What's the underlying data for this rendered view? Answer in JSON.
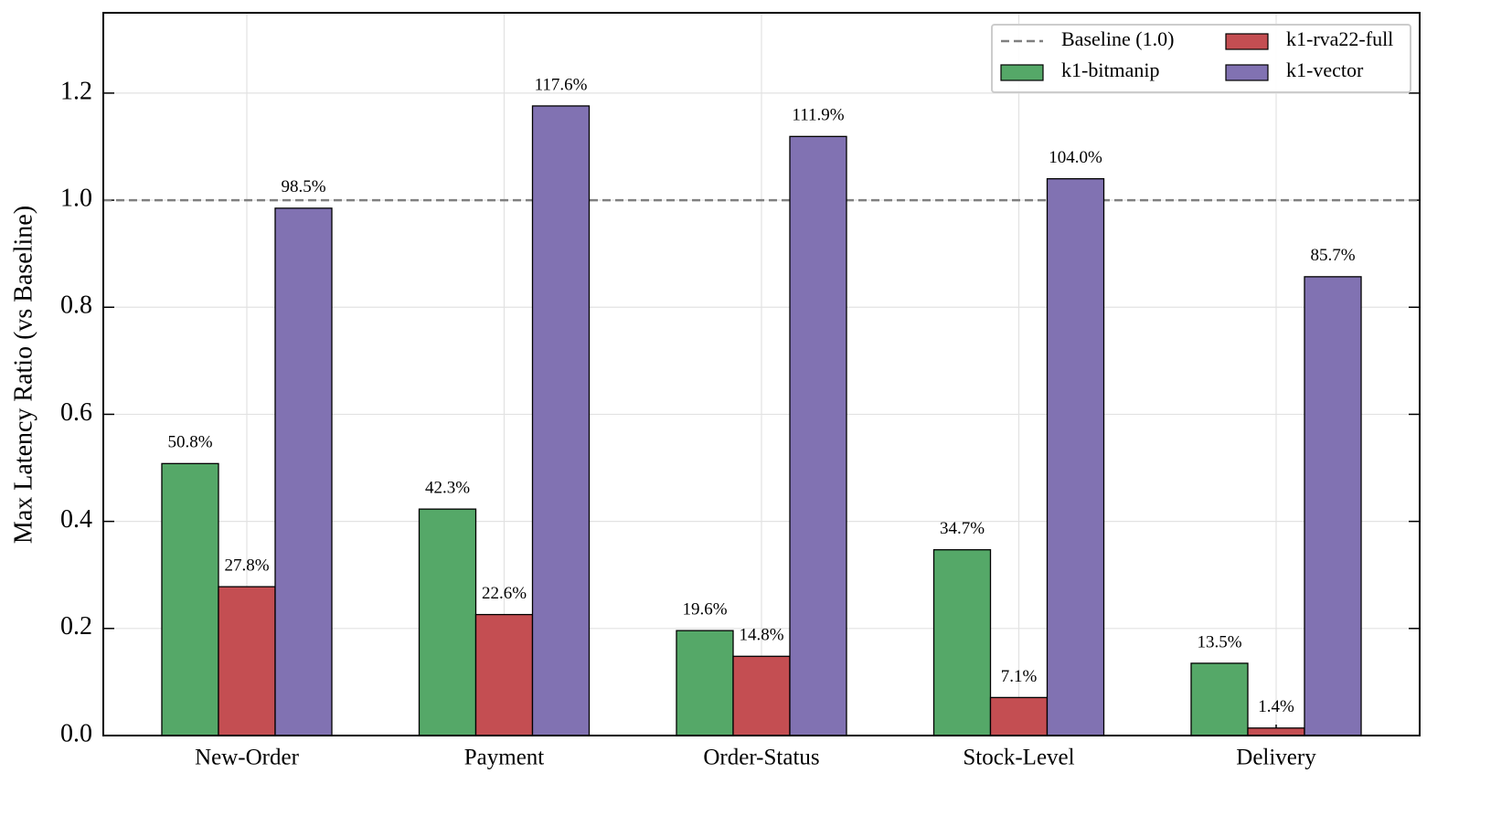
{
  "chart_data": {
    "type": "bar",
    "y_label": "Max Latency Ratio (vs Baseline)",
    "categories": [
      "New-Order",
      "Payment",
      "Order-Status",
      "Stock-Level",
      "Delivery"
    ],
    "series": [
      {
        "name": "k1-bitmanip",
        "color": "#55a868",
        "values": [
          0.508,
          0.423,
          0.196,
          0.347,
          0.135
        ],
        "value_labels": [
          "50.8%",
          "42.3%",
          "19.6%",
          "34.7%",
          "13.5%"
        ]
      },
      {
        "name": "k1-rva22-full",
        "color": "#c44e52",
        "values": [
          0.278,
          0.226,
          0.148,
          0.071,
          0.014
        ],
        "value_labels": [
          "27.8%",
          "22.6%",
          "14.8%",
          "7.1%",
          "1.4%"
        ]
      },
      {
        "name": "k1-vector",
        "color": "#8172b2",
        "values": [
          0.985,
          1.176,
          1.119,
          1.04,
          0.857
        ],
        "value_labels": [
          "98.5%",
          "117.6%",
          "111.9%",
          "104.0%",
          "85.7%"
        ]
      }
    ],
    "reference_line": {
      "name": "Baseline (1.0)",
      "value": 1,
      "color": "#808080"
    },
    "ylim": [
      0,
      1.35
    ],
    "yticks": [
      {
        "value": 0,
        "label": "0.0"
      },
      0.2,
      0.4,
      0.6,
      0.8,
      {
        "value": 1,
        "label": "1.0"
      },
      1.2
    ],
    "grid": true,
    "legend": "upper right"
  }
}
